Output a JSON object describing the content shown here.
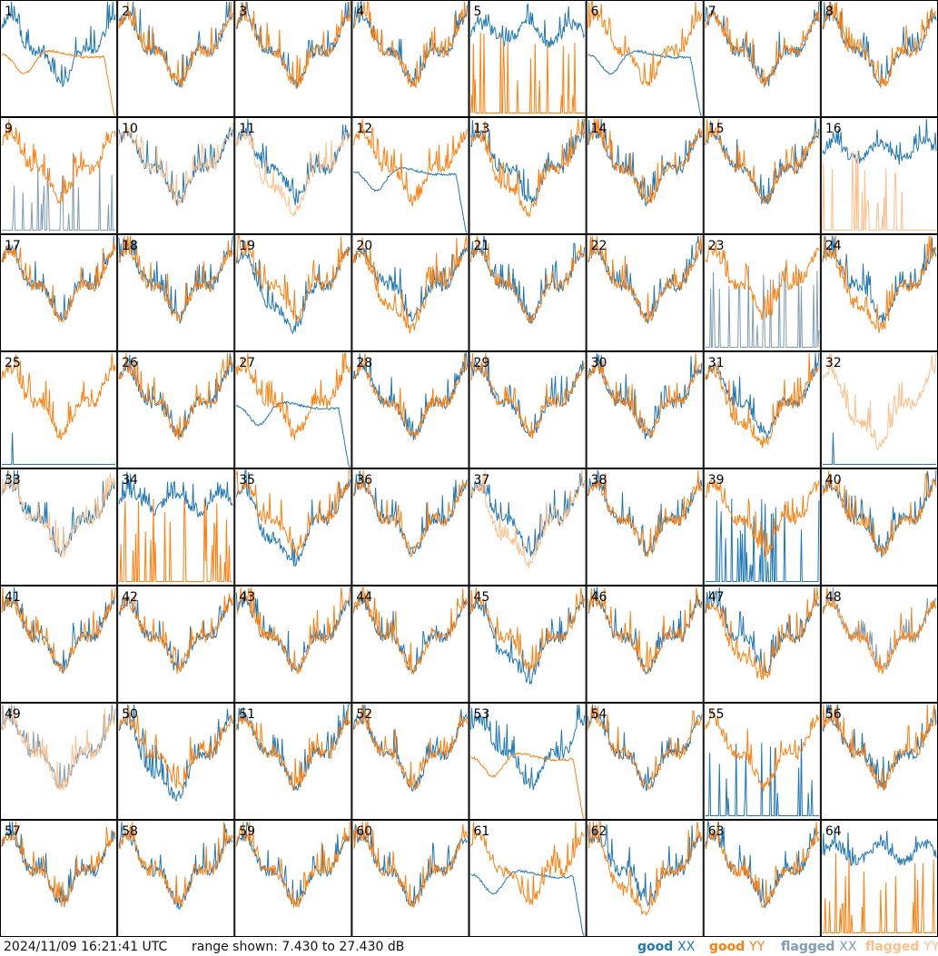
{
  "footer": {
    "timestamp": "2024/11/09 16:21:41 UTC",
    "range": "range shown: 7.430 to 27.430 dB"
  },
  "legend": [
    {
      "label_a": "good",
      "label_b": "XX",
      "color": "#1f77b4"
    },
    {
      "label_a": "good",
      "label_b": "YY",
      "color": "#ff7f0e"
    },
    {
      "label_a": "flagged",
      "label_b": "XX",
      "color": "#7f9cb3"
    },
    {
      "label_a": "flagged",
      "label_b": "YY",
      "color": "#ffbf8a"
    }
  ],
  "chart_data": {
    "type": "line",
    "layout": "small multiples 8 x 8",
    "y_range_db": [
      7.43,
      27.43
    ],
    "series": [
      "XX",
      "YY"
    ],
    "panels": [
      {
        "n": "1",
        "x": "good",
        "y": "good",
        "xs": "normal",
        "ys": "lowdroop"
      },
      {
        "n": "2",
        "x": "good",
        "y": "good",
        "xs": "normal",
        "ys": "normal"
      },
      {
        "n": "3",
        "x": "good",
        "y": "good",
        "xs": "normal",
        "ys": "normal"
      },
      {
        "n": "4",
        "x": "good",
        "y": "good",
        "xs": "normal",
        "ys": "normal"
      },
      {
        "n": "5",
        "x": "good",
        "y": "good",
        "xs": "high",
        "ys": "spikes"
      },
      {
        "n": "6",
        "x": "good",
        "y": "good",
        "xs": "lowdroop",
        "ys": "normal"
      },
      {
        "n": "7",
        "x": "good",
        "y": "good",
        "xs": "normal",
        "ys": "normal"
      },
      {
        "n": "8",
        "x": "good",
        "y": "good",
        "xs": "normal",
        "ys": "normal"
      },
      {
        "n": "9",
        "x": "flagged",
        "y": "good",
        "xs": "spikes",
        "ys": "normal"
      },
      {
        "n": "10",
        "x": "good",
        "y": "flagged",
        "xs": "normal",
        "ys": "normal"
      },
      {
        "n": "11",
        "x": "good",
        "y": "flagged",
        "xs": "normal",
        "ys": "deep"
      },
      {
        "n": "12",
        "x": "good",
        "y": "good",
        "xs": "lowdroop",
        "ys": "normal"
      },
      {
        "n": "13",
        "x": "good",
        "y": "good",
        "xs": "normal",
        "ys": "deep"
      },
      {
        "n": "14",
        "x": "good",
        "y": "good",
        "xs": "normal",
        "ys": "normal"
      },
      {
        "n": "15",
        "x": "good",
        "y": "good",
        "xs": "normal",
        "ys": "normal"
      },
      {
        "n": "16",
        "x": "good",
        "y": "flagged",
        "xs": "high",
        "ys": "spikes"
      },
      {
        "n": "17",
        "x": "good",
        "y": "good",
        "xs": "normal",
        "ys": "normal"
      },
      {
        "n": "18",
        "x": "good",
        "y": "good",
        "xs": "normal",
        "ys": "normal"
      },
      {
        "n": "19",
        "x": "good",
        "y": "good",
        "xs": "deep",
        "ys": "normal"
      },
      {
        "n": "20",
        "x": "good",
        "y": "good",
        "xs": "normal",
        "ys": "deep"
      },
      {
        "n": "21",
        "x": "good",
        "y": "good",
        "xs": "normal",
        "ys": "normal"
      },
      {
        "n": "22",
        "x": "good",
        "y": "good",
        "xs": "normal",
        "ys": "normal"
      },
      {
        "n": "23",
        "x": "flagged",
        "y": "good",
        "xs": "spikes",
        "ys": "normal"
      },
      {
        "n": "24",
        "x": "good",
        "y": "good",
        "xs": "normal",
        "ys": "deep"
      },
      {
        "n": "25",
        "x": "good",
        "y": "good",
        "xs": "flat",
        "ys": "normal"
      },
      {
        "n": "26",
        "x": "good",
        "y": "good",
        "xs": "normal",
        "ys": "normal"
      },
      {
        "n": "27",
        "x": "good",
        "y": "good",
        "xs": "lowdroop",
        "ys": "normal"
      },
      {
        "n": "28",
        "x": "good",
        "y": "good",
        "xs": "normal",
        "ys": "normal"
      },
      {
        "n": "29",
        "x": "good",
        "y": "good",
        "xs": "normal",
        "ys": "normal"
      },
      {
        "n": "30",
        "x": "good",
        "y": "good",
        "xs": "normal",
        "ys": "normal"
      },
      {
        "n": "31",
        "x": "good",
        "y": "good",
        "xs": "normal",
        "ys": "deep"
      },
      {
        "n": "32",
        "x": "good",
        "y": "flagged",
        "xs": "flat",
        "ys": "deep"
      },
      {
        "n": "33",
        "x": "good",
        "y": "flagged",
        "xs": "normal",
        "ys": "normal"
      },
      {
        "n": "34",
        "x": "good",
        "y": "good",
        "xs": "high",
        "ys": "spikes"
      },
      {
        "n": "35",
        "x": "good",
        "y": "good",
        "xs": "deep",
        "ys": "normal"
      },
      {
        "n": "36",
        "x": "good",
        "y": "good",
        "xs": "normal",
        "ys": "normal"
      },
      {
        "n": "37",
        "x": "good",
        "y": "flagged",
        "xs": "normal",
        "ys": "deep"
      },
      {
        "n": "38",
        "x": "good",
        "y": "good",
        "xs": "normal",
        "ys": "normal"
      },
      {
        "n": "39",
        "x": "good",
        "y": "good",
        "xs": "spikes",
        "ys": "normal"
      },
      {
        "n": "40",
        "x": "good",
        "y": "good",
        "xs": "normal",
        "ys": "normal"
      },
      {
        "n": "41",
        "x": "good",
        "y": "good",
        "xs": "normal",
        "ys": "normal"
      },
      {
        "n": "42",
        "x": "good",
        "y": "good",
        "xs": "normal",
        "ys": "normal"
      },
      {
        "n": "43",
        "x": "good",
        "y": "good",
        "xs": "normal",
        "ys": "normal"
      },
      {
        "n": "44",
        "x": "good",
        "y": "good",
        "xs": "normal",
        "ys": "normal"
      },
      {
        "n": "45",
        "x": "good",
        "y": "good",
        "xs": "deep",
        "ys": "normal"
      },
      {
        "n": "46",
        "x": "good",
        "y": "good",
        "xs": "normal",
        "ys": "normal"
      },
      {
        "n": "47",
        "x": "good",
        "y": "good",
        "xs": "normal",
        "ys": "deep"
      },
      {
        "n": "48",
        "x": "flagged",
        "y": "good",
        "xs": "normal",
        "ys": "normal"
      },
      {
        "n": "49",
        "x": "flagged",
        "y": "flagged",
        "xs": "normal",
        "ys": "normal"
      },
      {
        "n": "50",
        "x": "good",
        "y": "good",
        "xs": "deep",
        "ys": "normal"
      },
      {
        "n": "51",
        "x": "good",
        "y": "good",
        "xs": "normal",
        "ys": "normal"
      },
      {
        "n": "52",
        "x": "good",
        "y": "good",
        "xs": "normal",
        "ys": "normal"
      },
      {
        "n": "53",
        "x": "good",
        "y": "good",
        "xs": "normal",
        "ys": "lowdroop"
      },
      {
        "n": "54",
        "x": "good",
        "y": "good",
        "xs": "normal",
        "ys": "normal"
      },
      {
        "n": "55",
        "x": "good",
        "y": "good",
        "xs": "spikes",
        "ys": "normal"
      },
      {
        "n": "56",
        "x": "good",
        "y": "good",
        "xs": "normal",
        "ys": "normal"
      },
      {
        "n": "57",
        "x": "good",
        "y": "good",
        "xs": "normal",
        "ys": "normal"
      },
      {
        "n": "58",
        "x": "good",
        "y": "good",
        "xs": "normal",
        "ys": "normal"
      },
      {
        "n": "59",
        "x": "good",
        "y": "good",
        "xs": "normal",
        "ys": "normal"
      },
      {
        "n": "60",
        "x": "good",
        "y": "good",
        "xs": "normal",
        "ys": "normal"
      },
      {
        "n": "61",
        "x": "good",
        "y": "good",
        "xs": "lowdroop",
        "ys": "normal"
      },
      {
        "n": "62",
        "x": "good",
        "y": "good",
        "xs": "normal",
        "ys": "deep"
      },
      {
        "n": "63",
        "x": "good",
        "y": "good",
        "xs": "normal",
        "ys": "normal"
      },
      {
        "n": "64",
        "x": "good",
        "y": "good",
        "xs": "high",
        "ys": "spikes"
      }
    ]
  }
}
